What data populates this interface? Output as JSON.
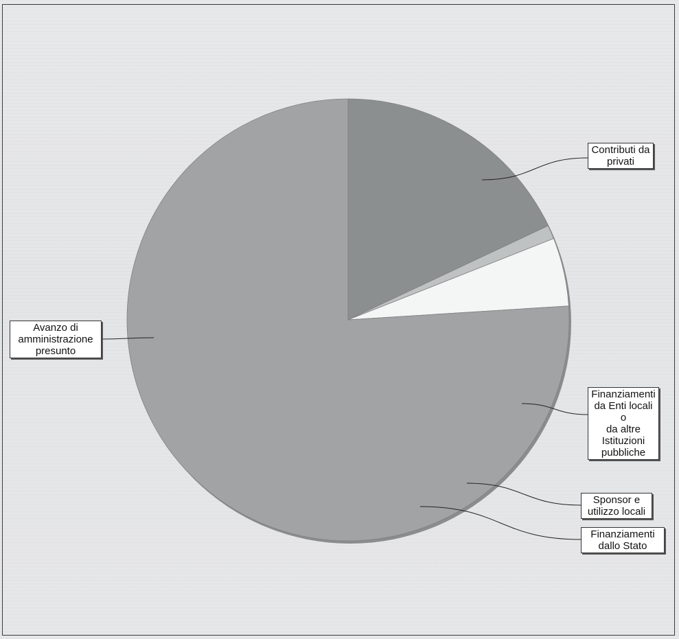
{
  "chart_data": {
    "type": "pie",
    "title": "",
    "slices": [
      {
        "label": "Contributi da\nprivati",
        "value": 0,
        "color": "#9d9f9f"
      },
      {
        "label": "Finanziamenti\nda Enti locali o\nda altre\nIstituzioni\npubbliche",
        "value": 18.0,
        "color": "#8c8f90"
      },
      {
        "label": "Sponsor e\nutilizzo locali",
        "value": 1.0,
        "color": "#bfc2c3"
      },
      {
        "label": "Finanziamenti\ndallo Stato",
        "value": 5.0,
        "color": "#f4f5f5"
      },
      {
        "label": "Avanzo di\namministrazione\npresunto",
        "value": 76.0,
        "color": "#a1a3a4"
      }
    ]
  }
}
